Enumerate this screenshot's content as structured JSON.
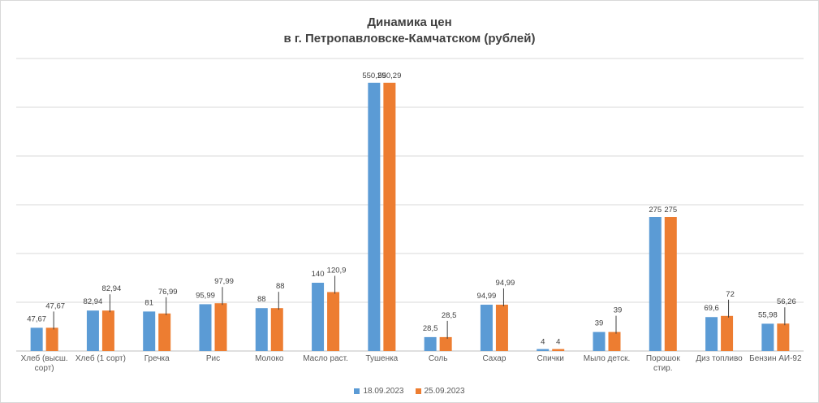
{
  "chart_data": {
    "type": "bar",
    "title": "Динамика цен",
    "subtitle": "в г. Петропавловске-Камчатском (рублей)",
    "categories": [
      [
        "Хлеб (высш.",
        "сорт)"
      ],
      [
        "Хлеб (1 сорт)"
      ],
      [
        "Гречка"
      ],
      [
        "Рис"
      ],
      [
        "Молоко"
      ],
      [
        "Масло раст."
      ],
      [
        "Тушенка"
      ],
      [
        "Соль"
      ],
      [
        "Сахар"
      ],
      [
        "Спички"
      ],
      [
        "Мыло детск."
      ],
      [
        "Порошок",
        "стир."
      ],
      [
        "Диз топливо"
      ],
      [
        "Бензин АИ-92"
      ]
    ],
    "series": [
      {
        "name": "18.09.2023",
        "color": "#5b9bd5",
        "values": [
          47.67,
          82.94,
          81,
          95.99,
          88,
          140,
          550.29,
          28.5,
          94.99,
          4,
          39,
          275,
          69.6,
          55.98
        ],
        "labels": [
          "47,67",
          "82,94",
          "81",
          "95,99",
          "88",
          "140",
          "550,29",
          "28,5",
          "94,99",
          "4",
          "39",
          "275",
          "69,6",
          "55,98"
        ]
      },
      {
        "name": "25.09.2023",
        "color": "#ed7d31",
        "values": [
          47.67,
          82.94,
          76.99,
          97.99,
          88,
          120.9,
          550.29,
          28.5,
          94.99,
          4,
          39,
          275,
          72,
          56.26
        ],
        "labels": [
          "47,67",
          "82,94",
          "76,99",
          "97,99",
          "88",
          "120,9",
          "550,29",
          "28,5",
          "94,99",
          "4",
          "39",
          "275",
          "72",
          "56,26"
        ]
      }
    ],
    "ylim": [
      0,
      600
    ],
    "grid": true,
    "legend": "bottom"
  }
}
